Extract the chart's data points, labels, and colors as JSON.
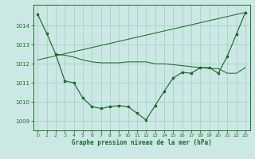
{
  "background_color": "#cce8e4",
  "grid_color": "#a8cfc8",
  "line_color": "#1a6b2a",
  "xlabel": "Graphe pression niveau de la mer (hPa)",
  "ylim": [
    1008.5,
    1015.1
  ],
  "xlim": [
    -0.5,
    23.5
  ],
  "yticks": [
    1009,
    1010,
    1011,
    1012,
    1013,
    1014
  ],
  "xticks": [
    0,
    1,
    2,
    3,
    4,
    5,
    6,
    7,
    8,
    9,
    10,
    11,
    12,
    13,
    14,
    15,
    16,
    17,
    18,
    19,
    20,
    21,
    22,
    23
  ],
  "series_main_x": [
    0,
    1,
    2,
    3,
    4,
    5,
    6,
    7,
    8,
    9,
    10,
    11,
    12,
    13,
    14,
    15,
    16,
    17,
    18,
    19,
    20,
    21,
    22,
    23
  ],
  "series_main_y": [
    1014.6,
    1013.6,
    1012.5,
    1011.1,
    1011.0,
    1010.2,
    1009.75,
    1009.65,
    1009.75,
    1009.8,
    1009.75,
    1009.4,
    1009.05,
    1009.8,
    1010.55,
    1011.25,
    1011.55,
    1011.5,
    1011.8,
    1011.8,
    1011.5,
    1012.4,
    1013.55,
    1014.7
  ],
  "series_trend_x": [
    0,
    23
  ],
  "series_trend_y": [
    1012.2,
    1014.7
  ],
  "series_flat_x": [
    2,
    3,
    4,
    5,
    6,
    7,
    8,
    9,
    10,
    11,
    12,
    13,
    14,
    15,
    16,
    17,
    18,
    19,
    20,
    21,
    22,
    23
  ],
  "series_flat_y": [
    1012.5,
    1012.45,
    1012.35,
    1012.2,
    1012.1,
    1012.05,
    1012.05,
    1012.05,
    1012.1,
    1012.1,
    1012.1,
    1012.0,
    1012.0,
    1011.95,
    1011.9,
    1011.85,
    1011.8,
    1011.75,
    1011.75,
    1011.5,
    1011.5,
    1011.8
  ]
}
